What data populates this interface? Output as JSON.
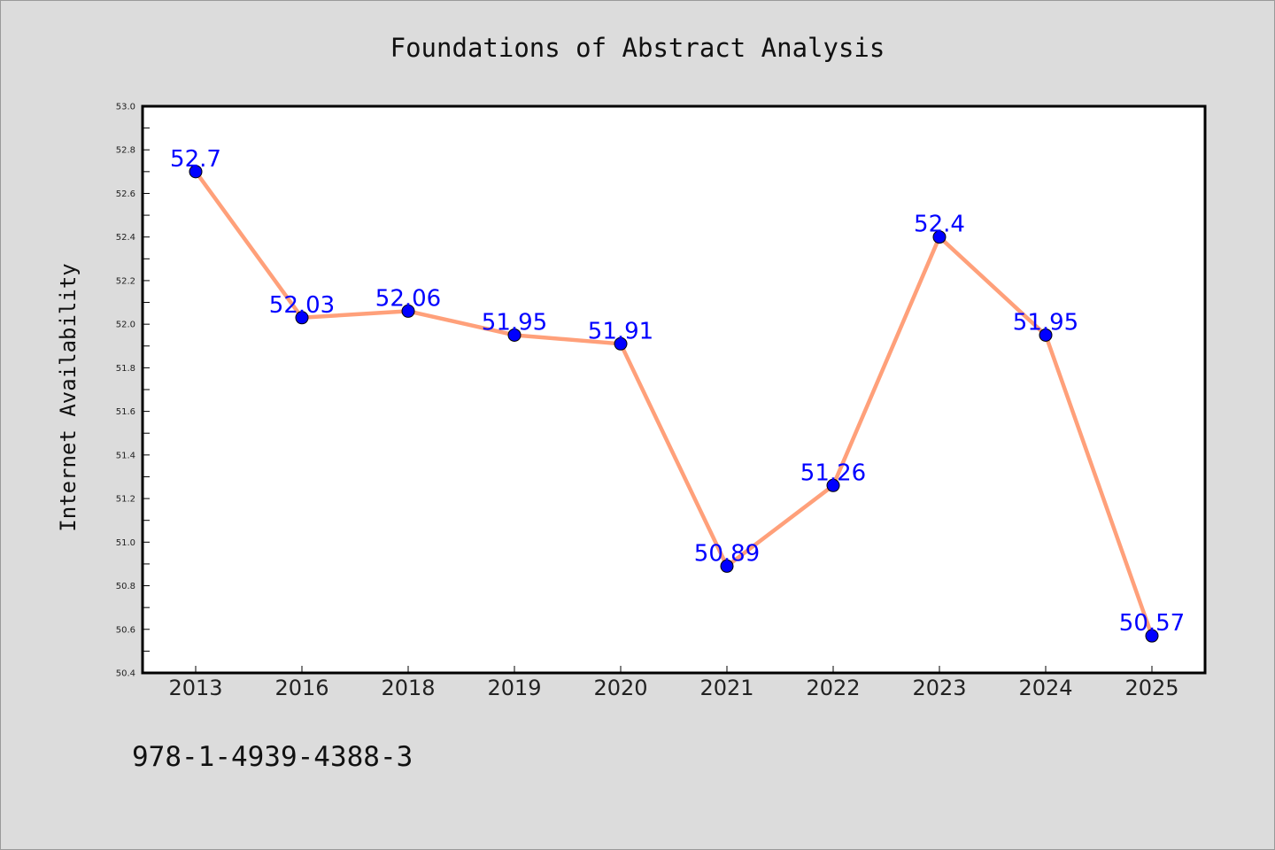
{
  "chart_data": {
    "type": "line",
    "title": "Foundations of Abstract Analysis",
    "xlabel": "",
    "ylabel": "Internet Availability",
    "categories": [
      "2013",
      "2016",
      "2018",
      "2019",
      "2020",
      "2021",
      "2022",
      "2023",
      "2024",
      "2025"
    ],
    "series": [
      {
        "values": [
          52.7,
          52.03,
          52.06,
          51.95,
          51.91,
          50.89,
          51.26,
          52.4,
          51.95,
          50.57
        ],
        "labels": [
          "52.7",
          "52.03",
          "52.06",
          "51.95",
          "51.91",
          "50.89",
          "51.26",
          "52.4",
          "51.95",
          "50.57"
        ]
      }
    ],
    "ylim": [
      50.4,
      53.0
    ],
    "yticks": [
      "50.4",
      "50.6",
      "50.8",
      "51.0",
      "51.2",
      "51.4",
      "51.6",
      "51.8",
      "52.0",
      "52.2",
      "52.4",
      "52.6",
      "52.8",
      "53.0"
    ],
    "grid": false,
    "legend": "none"
  },
  "footnote": "978-1-4939-4388-3",
  "colors": {
    "background": "#dcdcdc",
    "plot_background": "#ffffff",
    "line": "#ffa07a",
    "marker": "#0000ff",
    "data_label": "#0000ff"
  }
}
